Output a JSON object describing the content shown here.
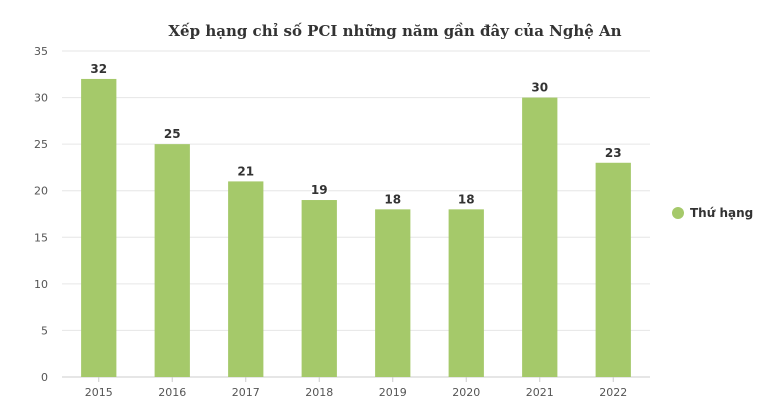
{
  "chart_data": {
    "type": "bar",
    "title": "Xếp hạng chỉ số PCI những năm gần đây của Nghệ An",
    "categories": [
      "2015",
      "2016",
      "2017",
      "2018",
      "2019",
      "2020",
      "2021",
      "2022"
    ],
    "series": [
      {
        "name": "Thứ hạng",
        "values": [
          32,
          25,
          21,
          19,
          18,
          18,
          30,
          23
        ],
        "color": "#a5c96a"
      }
    ],
    "xlabel": "",
    "ylabel": "",
    "ylim": [
      0,
      35
    ],
    "yticks": [
      0,
      5,
      10,
      15,
      20,
      25,
      30,
      35
    ],
    "grid": true,
    "legend": "right",
    "data_labels": true
  }
}
